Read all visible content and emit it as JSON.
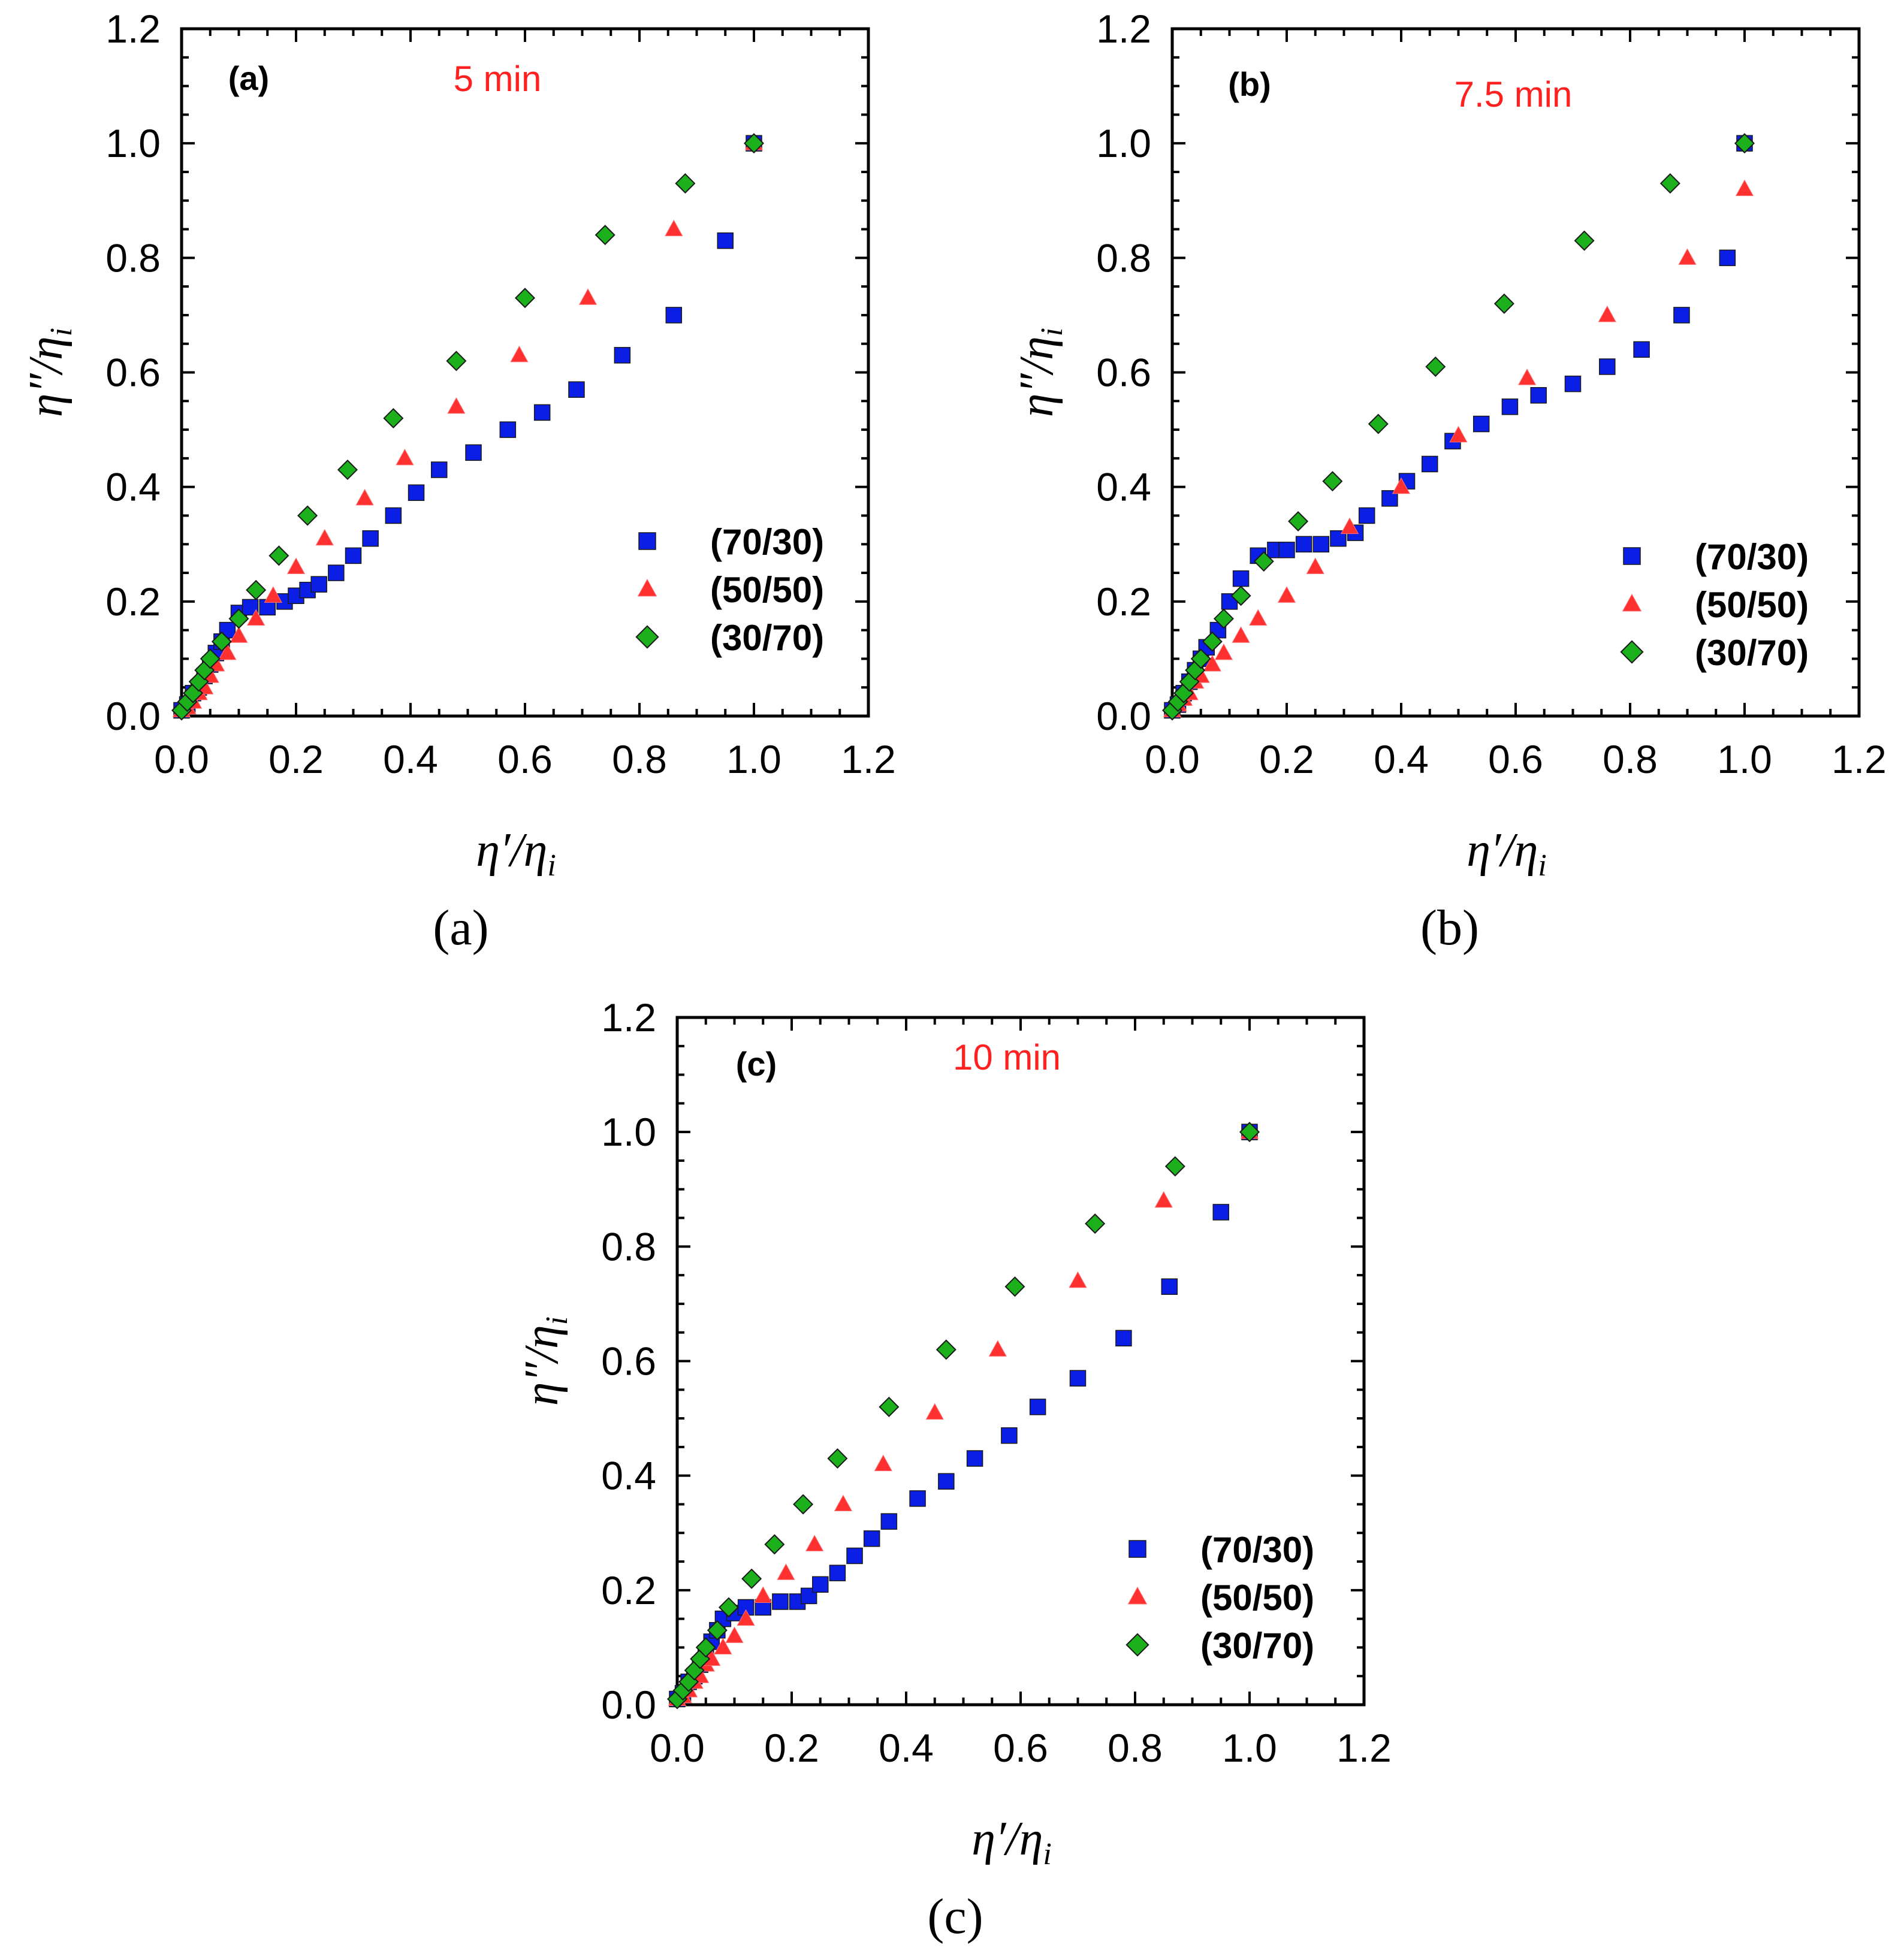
{
  "captions": [
    "(a)",
    "(b)",
    "(c)"
  ],
  "colors": {
    "square": "#0a1ee6",
    "triangle": "#ff3030",
    "diamond": "#1cb01c",
    "time_label": "#ff2020"
  },
  "chart_data": [
    {
      "type": "scatter",
      "panel_label": "(a)",
      "time_label": "5 min",
      "xlabel": "η′/ηi",
      "ylabel": "η″/ηi",
      "xlim": [
        0,
        1.2
      ],
      "ylim": [
        0,
        1.2
      ],
      "xticks": [
        "0.0",
        "0.2",
        "0.4",
        "0.6",
        "0.8",
        "1.0",
        "1.2"
      ],
      "yticks": [
        "0.0",
        "0.2",
        "0.4",
        "0.6",
        "0.8",
        "1.0",
        "1.2"
      ],
      "legend_position": "bottom-right",
      "series": [
        {
          "name": "(70/30)",
          "marker": "square",
          "x": [
            0.0,
            0.01,
            0.02,
            0.03,
            0.04,
            0.05,
            0.06,
            0.07,
            0.08,
            0.1,
            0.12,
            0.15,
            0.18,
            0.2,
            0.22,
            0.24,
            0.27,
            0.3,
            0.33,
            0.37,
            0.41,
            0.45,
            0.51,
            0.57,
            0.63,
            0.69,
            0.77,
            0.86,
            0.95,
            1.0
          ],
          "y": [
            0.01,
            0.02,
            0.04,
            0.05,
            0.07,
            0.09,
            0.11,
            0.13,
            0.15,
            0.18,
            0.19,
            0.19,
            0.2,
            0.21,
            0.22,
            0.23,
            0.25,
            0.28,
            0.31,
            0.35,
            0.39,
            0.43,
            0.46,
            0.5,
            0.53,
            0.57,
            0.63,
            0.7,
            0.83,
            1.0
          ]
        },
        {
          "name": "(50/50)",
          "marker": "triangle",
          "x": [
            0.0,
            0.01,
            0.02,
            0.03,
            0.04,
            0.05,
            0.06,
            0.08,
            0.1,
            0.13,
            0.16,
            0.2,
            0.25,
            0.32,
            0.39,
            0.48,
            0.59,
            0.71,
            0.86,
            1.0
          ],
          "y": [
            0.01,
            0.015,
            0.025,
            0.04,
            0.05,
            0.07,
            0.09,
            0.11,
            0.14,
            0.17,
            0.21,
            0.26,
            0.31,
            0.38,
            0.45,
            0.54,
            0.63,
            0.73,
            0.85,
            1.0
          ]
        },
        {
          "name": "(30/70)",
          "marker": "diamond",
          "x": [
            0.0,
            0.01,
            0.02,
            0.03,
            0.04,
            0.05,
            0.07,
            0.1,
            0.13,
            0.17,
            0.22,
            0.29,
            0.37,
            0.48,
            0.6,
            0.74,
            0.88,
            1.0
          ],
          "y": [
            0.01,
            0.025,
            0.04,
            0.06,
            0.08,
            0.1,
            0.13,
            0.17,
            0.22,
            0.28,
            0.35,
            0.43,
            0.52,
            0.62,
            0.73,
            0.84,
            0.93,
            1.0
          ]
        }
      ]
    },
    {
      "type": "scatter",
      "panel_label": "(b)",
      "time_label": "7.5 min",
      "xlabel": "η′/ηi",
      "ylabel": "η″/ηi",
      "xlim": [
        0,
        1.2
      ],
      "ylim": [
        0,
        1.2
      ],
      "xticks": [
        "0.0",
        "0.2",
        "0.4",
        "0.6",
        "0.8",
        "1.0",
        "1.2"
      ],
      "yticks": [
        "0.0",
        "0.2",
        "0.4",
        "0.6",
        "0.8",
        "1.0",
        "1.2"
      ],
      "legend_position": "bottom-right",
      "series": [
        {
          "name": "(70/30)",
          "marker": "square",
          "x": [
            0.0,
            0.01,
            0.02,
            0.03,
            0.04,
            0.05,
            0.06,
            0.08,
            0.1,
            0.12,
            0.15,
            0.18,
            0.2,
            0.23,
            0.26,
            0.29,
            0.32,
            0.34,
            0.38,
            0.41,
            0.45,
            0.49,
            0.54,
            0.59,
            0.64,
            0.7,
            0.76,
            0.82,
            0.89,
            0.97,
            1.0
          ],
          "y": [
            0.01,
            0.02,
            0.04,
            0.06,
            0.08,
            0.1,
            0.12,
            0.15,
            0.2,
            0.24,
            0.28,
            0.29,
            0.29,
            0.3,
            0.3,
            0.31,
            0.32,
            0.35,
            0.38,
            0.41,
            0.44,
            0.48,
            0.51,
            0.54,
            0.56,
            0.58,
            0.61,
            0.64,
            0.7,
            0.8,
            1.0
          ]
        },
        {
          "name": "(50/50)",
          "marker": "triangle",
          "x": [
            0.0,
            0.01,
            0.02,
            0.03,
            0.04,
            0.05,
            0.07,
            0.09,
            0.12,
            0.15,
            0.2,
            0.25,
            0.31,
            0.4,
            0.5,
            0.62,
            0.76,
            0.9,
            1.0
          ],
          "y": [
            0.01,
            0.02,
            0.03,
            0.04,
            0.06,
            0.07,
            0.09,
            0.11,
            0.14,
            0.17,
            0.21,
            0.26,
            0.33,
            0.4,
            0.49,
            0.59,
            0.7,
            0.8,
            0.92
          ]
        },
        {
          "name": "(30/70)",
          "marker": "diamond",
          "x": [
            0.0,
            0.01,
            0.02,
            0.03,
            0.04,
            0.05,
            0.07,
            0.09,
            0.12,
            0.16,
            0.22,
            0.28,
            0.36,
            0.46,
            0.58,
            0.72,
            0.87,
            1.0
          ],
          "y": [
            0.01,
            0.025,
            0.04,
            0.06,
            0.08,
            0.1,
            0.13,
            0.17,
            0.21,
            0.27,
            0.34,
            0.41,
            0.51,
            0.61,
            0.72,
            0.83,
            0.93,
            1.0
          ]
        }
      ]
    },
    {
      "type": "scatter",
      "panel_label": "(c)",
      "time_label": "10 min",
      "xlabel": "η′/ηi",
      "ylabel": "η″/ηi",
      "xlim": [
        0,
        1.2
      ],
      "ylim": [
        0,
        1.2
      ],
      "xticks": [
        "0.0",
        "0.2",
        "0.4",
        "0.6",
        "0.8",
        "1.0",
        "1.2"
      ],
      "yticks": [
        "0.0",
        "0.2",
        "0.4",
        "0.6",
        "0.8",
        "1.0",
        "1.2"
      ],
      "legend_position": "bottom-right",
      "series": [
        {
          "name": "(70/30)",
          "marker": "square",
          "x": [
            0.0,
            0.01,
            0.02,
            0.03,
            0.04,
            0.05,
            0.06,
            0.07,
            0.08,
            0.1,
            0.12,
            0.15,
            0.18,
            0.21,
            0.23,
            0.25,
            0.28,
            0.31,
            0.34,
            0.37,
            0.42,
            0.47,
            0.52,
            0.58,
            0.63,
            0.7,
            0.78,
            0.86,
            0.95,
            1.0
          ],
          "y": [
            0.01,
            0.02,
            0.04,
            0.05,
            0.07,
            0.09,
            0.11,
            0.13,
            0.15,
            0.16,
            0.17,
            0.17,
            0.18,
            0.18,
            0.19,
            0.21,
            0.23,
            0.26,
            0.29,
            0.32,
            0.36,
            0.39,
            0.43,
            0.47,
            0.52,
            0.57,
            0.64,
            0.73,
            0.86,
            1.0
          ]
        },
        {
          "name": "(50/50)",
          "marker": "triangle",
          "x": [
            0.0,
            0.01,
            0.02,
            0.03,
            0.04,
            0.05,
            0.06,
            0.08,
            0.1,
            0.12,
            0.15,
            0.19,
            0.24,
            0.29,
            0.36,
            0.45,
            0.56,
            0.7,
            0.85,
            1.0
          ],
          "y": [
            0.01,
            0.015,
            0.025,
            0.04,
            0.05,
            0.07,
            0.08,
            0.1,
            0.12,
            0.15,
            0.19,
            0.23,
            0.28,
            0.35,
            0.42,
            0.51,
            0.62,
            0.74,
            0.88,
            1.0
          ]
        },
        {
          "name": "(30/70)",
          "marker": "diamond",
          "x": [
            0.0,
            0.01,
            0.02,
            0.03,
            0.04,
            0.05,
            0.07,
            0.09,
            0.13,
            0.17,
            0.22,
            0.28,
            0.37,
            0.47,
            0.59,
            0.73,
            0.87,
            1.0
          ],
          "y": [
            0.01,
            0.025,
            0.04,
            0.06,
            0.08,
            0.1,
            0.13,
            0.17,
            0.22,
            0.28,
            0.35,
            0.43,
            0.52,
            0.62,
            0.73,
            0.84,
            0.94,
            1.0
          ]
        }
      ]
    }
  ]
}
